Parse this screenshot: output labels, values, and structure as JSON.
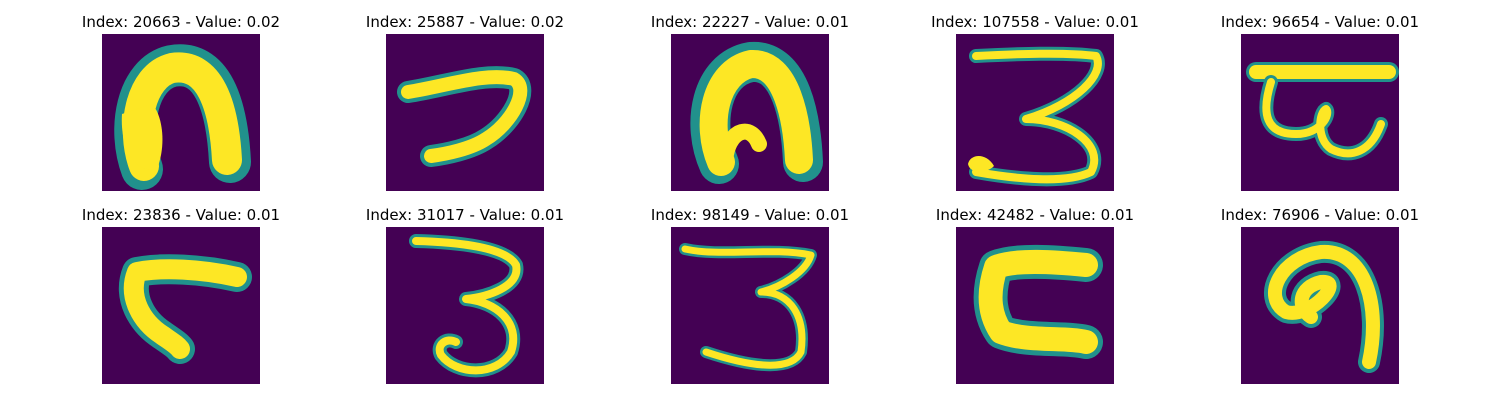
{
  "colors": {
    "background": "#440154",
    "edge": "#21918c",
    "mid": "#5ec962",
    "stroke": "#fde725"
  },
  "panels": [
    {
      "title": "Index: 20663 - Value: 0.02"
    },
    {
      "title": "Index: 25887 - Value: 0.02"
    },
    {
      "title": "Index: 22227 - Value: 0.01"
    },
    {
      "title": "Index: 107558 - Value: 0.01"
    },
    {
      "title": "Index: 96654 - Value: 0.01"
    },
    {
      "title": "Index: 23836 - Value: 0.01"
    },
    {
      "title": "Index: 31017 - Value: 0.01"
    },
    {
      "title": "Index: 98149 - Value: 0.01"
    },
    {
      "title": "Index: 42482 - Value: 0.01"
    },
    {
      "title": "Index: 76906 - Value: 0.01"
    }
  ]
}
